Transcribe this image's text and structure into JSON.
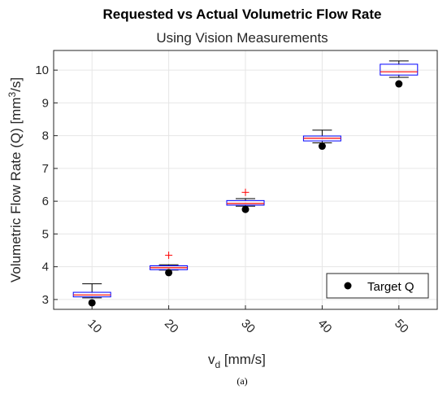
{
  "chart_data": {
    "type": "box",
    "title": "Requested vs Actual Volumetric Flow Rate",
    "subtitle": "Using Vision Measurements",
    "xlabel_main": "v",
    "xlabel_sub": "d",
    "xlabel_unit": " [mm/s]",
    "ylabel_main": "Volumetric Flow Rate (Q) [mm",
    "ylabel_sup": "3",
    "ylabel_end": "/s]",
    "categories": [
      "10",
      "20",
      "30",
      "40",
      "50"
    ],
    "ylim": [
      2.7,
      10.6
    ],
    "yticks": [
      "3",
      "4",
      "5",
      "6",
      "7",
      "8",
      "9",
      "10"
    ],
    "grid": true,
    "boxes": [
      {
        "category": "10",
        "whisker_low": 3.05,
        "q1": 3.08,
        "median": 3.14,
        "q3": 3.22,
        "whisker_high": 3.48,
        "outliers": []
      },
      {
        "category": "20",
        "whisker_low": 3.9,
        "q1": 3.91,
        "median": 3.97,
        "q3": 4.03,
        "whisker_high": 4.06,
        "outliers": [
          4.35
        ]
      },
      {
        "category": "30",
        "whisker_low": 5.85,
        "q1": 5.88,
        "median": 5.93,
        "q3": 6.02,
        "whisker_high": 6.08,
        "outliers": [
          6.27
        ]
      },
      {
        "category": "40",
        "whisker_low": 7.78,
        "q1": 7.84,
        "median": 7.92,
        "q3": 7.99,
        "whisker_high": 8.17,
        "outliers": []
      },
      {
        "category": "50",
        "whisker_low": 9.78,
        "q1": 9.85,
        "median": 9.95,
        "q3": 10.18,
        "whisker_high": 10.28,
        "outliers": []
      }
    ],
    "target_series": {
      "name": "Target Q",
      "values": [
        2.9,
        3.82,
        5.75,
        7.68,
        9.58
      ]
    },
    "legend_position": "bottom-right",
    "colors": {
      "box": "#0000ff",
      "median": "#ff0000",
      "whisker": "#000000",
      "outlier": "#ff0000",
      "target": "#000000",
      "grid": "#e6e6e6"
    }
  },
  "caption": "(a)"
}
